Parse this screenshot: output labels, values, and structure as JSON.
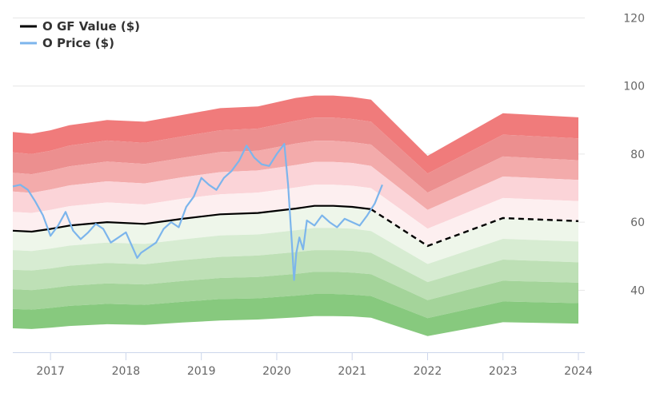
{
  "chart_data": {
    "type": "line",
    "title": "",
    "xlabel": "",
    "ylabel": "",
    "xlim": [
      2016.5,
      2024.0
    ],
    "ylim": [
      22,
      122
    ],
    "x_ticks": [
      "2017",
      "2018",
      "2019",
      "2020",
      "2021",
      "2022",
      "2023",
      "2024"
    ],
    "x_tick_values": [
      2017,
      2018,
      2019,
      2020,
      2021,
      2022,
      2023,
      2024
    ],
    "y_ticks": [
      "40",
      "60",
      "80",
      "100",
      "120"
    ],
    "y_tick_values": [
      40,
      60,
      80,
      100,
      120
    ],
    "grid": "horizontal",
    "legend": "top-left",
    "legend_entries": [
      {
        "label": "O GF Value ($)",
        "color": "#000000"
      },
      {
        "label": "O Price ($)",
        "color": "#7cb5ec"
      }
    ],
    "gf_value": {
      "name": "O GF Value ($)",
      "color": "#000000",
      "x": [
        2016.5,
        2016.75,
        2017.0,
        2017.25,
        2017.75,
        2018.25,
        2018.75,
        2019.25,
        2019.75,
        2020.25,
        2020.5,
        2020.75,
        2021.0,
        2021.25,
        2022.0,
        2023.0,
        2024.0
      ],
      "y": [
        57.5,
        57.2,
        58.0,
        59.0,
        60.0,
        59.5,
        61.0,
        62.3,
        62.7,
        64.0,
        64.8,
        64.8,
        64.5,
        63.8,
        53.0,
        61.2,
        60.3
      ],
      "projected_from": 2021.25
    },
    "price": {
      "name": "O Price ($)",
      "color": "#7cb5ec",
      "x": [
        2016.5,
        2016.6,
        2016.7,
        2016.8,
        2016.9,
        2017.0,
        2017.1,
        2017.2,
        2017.3,
        2017.4,
        2017.5,
        2017.6,
        2017.7,
        2017.8,
        2017.9,
        2018.0,
        2018.1,
        2018.15,
        2018.2,
        2018.3,
        2018.4,
        2018.5,
        2018.6,
        2018.7,
        2018.8,
        2018.9,
        2019.0,
        2019.1,
        2019.2,
        2019.3,
        2019.4,
        2019.5,
        2019.6,
        2019.7,
        2019.8,
        2019.9,
        2020.0,
        2020.1,
        2020.15,
        2020.2,
        2020.23,
        2020.26,
        2020.3,
        2020.35,
        2020.4,
        2020.5,
        2020.6,
        2020.7,
        2020.8,
        2020.9,
        2021.0,
        2021.1,
        2021.2,
        2021.3,
        2021.4
      ],
      "y": [
        70.5,
        71.0,
        69.5,
        66.0,
        62.0,
        56.0,
        59.0,
        63.0,
        57.5,
        55.0,
        57.0,
        59.5,
        58.0,
        54.0,
        55.5,
        57.0,
        52.0,
        49.5,
        51.0,
        52.5,
        54.0,
        58.0,
        60.0,
        58.5,
        64.5,
        67.5,
        73.0,
        71.0,
        69.5,
        73.0,
        75.0,
        78.0,
        82.5,
        79.0,
        77.0,
        76.5,
        80.0,
        83.0,
        71.0,
        54.0,
        43.0,
        51.0,
        55.5,
        52.0,
        60.5,
        59.0,
        62.0,
        60.0,
        58.5,
        61.0,
        60.0,
        59.0,
        62.0,
        65.5,
        71.0
      ]
    },
    "valuation_bands": {
      "x": [
        2016.5,
        2016.75,
        2017.0,
        2017.25,
        2017.75,
        2018.25,
        2018.75,
        2019.25,
        2019.75,
        2020.25,
        2020.5,
        2020.75,
        2021.0,
        2021.25,
        2022.0,
        2023.0,
        2024.0
      ],
      "boundaries": [
        [
          86.5,
          86.0,
          87.0,
          88.5,
          90.0,
          89.5,
          91.5,
          93.5,
          94.0,
          96.5,
          97.2,
          97.2,
          96.8,
          96.0,
          79.5,
          92.0,
          90.8
        ],
        [
          80.5,
          80.0,
          81.0,
          82.5,
          84.0,
          83.3,
          85.2,
          87.0,
          87.5,
          89.8,
          90.7,
          90.7,
          90.3,
          89.5,
          74.3,
          85.7,
          84.6
        ],
        [
          74.5,
          74.1,
          75.1,
          76.4,
          77.8,
          77.1,
          78.9,
          80.6,
          81.0,
          83.1,
          83.9,
          83.9,
          83.5,
          82.8,
          68.7,
          79.3,
          78.2
        ],
        [
          69.0,
          68.6,
          69.6,
          70.8,
          72.0,
          71.4,
          73.2,
          74.7,
          75.2,
          76.8,
          77.7,
          77.7,
          77.4,
          76.5,
          63.6,
          73.4,
          72.4
        ],
        [
          63.0,
          62.7,
          63.6,
          64.7,
          65.8,
          65.2,
          66.9,
          68.2,
          68.7,
          70.2,
          71.0,
          71.0,
          70.7,
          70.0,
          58.1,
          67.1,
          66.2
        ],
        [
          57.5,
          57.2,
          58.0,
          59.0,
          60.0,
          59.5,
          61.0,
          62.3,
          62.7,
          64.0,
          64.8,
          64.8,
          64.5,
          63.8,
          53.0,
          61.2,
          60.3
        ],
        [
          51.8,
          51.5,
          52.2,
          53.1,
          54.0,
          53.6,
          54.9,
          56.1,
          56.4,
          57.6,
          58.3,
          58.3,
          58.1,
          57.4,
          47.7,
          55.1,
          54.3
        ],
        [
          46.0,
          45.8,
          46.4,
          47.2,
          48.0,
          47.6,
          48.8,
          49.8,
          50.2,
          51.2,
          51.8,
          51.8,
          51.6,
          51.0,
          42.4,
          49.0,
          48.2
        ],
        [
          40.3,
          40.0,
          40.6,
          41.3,
          42.0,
          41.7,
          42.7,
          43.6,
          43.9,
          44.8,
          45.4,
          45.4,
          45.2,
          44.7,
          37.1,
          42.8,
          42.2
        ],
        [
          34.5,
          34.3,
          34.8,
          35.4,
          36.0,
          35.7,
          36.6,
          37.4,
          37.6,
          38.4,
          38.9,
          38.9,
          38.7,
          38.3,
          31.8,
          36.7,
          36.2
        ],
        [
          28.8,
          28.6,
          29.0,
          29.5,
          30.0,
          29.8,
          30.5,
          31.1,
          31.4,
          32.0,
          32.4,
          32.4,
          32.3,
          31.9,
          26.5,
          30.6,
          30.2
        ]
      ],
      "colors": [
        "#f07b7b",
        "#ec8f8f",
        "#f3abab",
        "#fbd4d8",
        "#fdeff0",
        "#eef6ea",
        "#d7ecd2",
        "#bee0b6",
        "#a4d49a",
        "#87c97e"
      ]
    }
  }
}
